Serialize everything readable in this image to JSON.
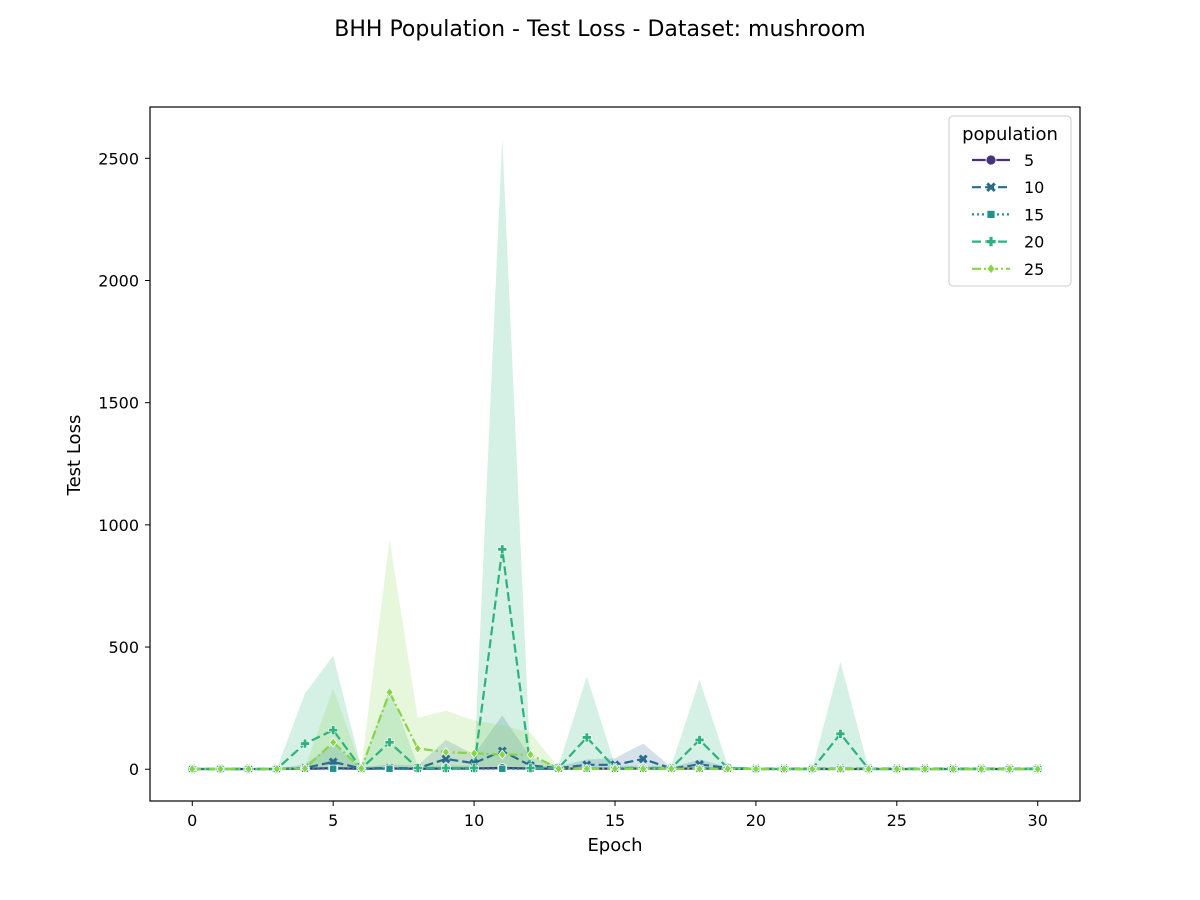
{
  "chart_data": {
    "type": "line",
    "title": "BHH Population - Test Loss - Dataset: mushroom",
    "xlabel": "Epoch",
    "ylabel": "Test Loss",
    "xlim": [
      -1.5,
      31.5
    ],
    "ylim": [
      -130,
      2710
    ],
    "xticks": [
      0,
      5,
      10,
      15,
      20,
      25,
      30
    ],
    "yticks": [
      0,
      500,
      1000,
      1500,
      2000,
      2500
    ],
    "grid": false,
    "legend": {
      "title": "population",
      "placement": "top-right"
    },
    "x": [
      0,
      1,
      2,
      3,
      4,
      5,
      6,
      7,
      8,
      9,
      10,
      11,
      12,
      13,
      14,
      15,
      16,
      17,
      18,
      19,
      20,
      21,
      22,
      23,
      24,
      25,
      26,
      27,
      28,
      29,
      30
    ],
    "series": [
      {
        "name": "5",
        "color": "#46327e",
        "marker": "circle",
        "dash": "solid",
        "values": [
          1,
          1,
          1,
          1,
          2,
          4,
          2,
          3,
          2,
          3,
          3,
          5,
          3,
          2,
          3,
          2,
          3,
          2,
          3,
          2,
          1,
          1,
          1,
          1,
          1,
          1,
          1,
          1,
          1,
          1,
          1
        ],
        "band_low": [
          0,
          0,
          0,
          0,
          0,
          0,
          0,
          0,
          0,
          0,
          0,
          0,
          0,
          0,
          0,
          0,
          0,
          0,
          0,
          0,
          0,
          0,
          0,
          0,
          0,
          0,
          0,
          0,
          0,
          0,
          0
        ],
        "band_high": [
          2,
          2,
          2,
          2,
          6,
          10,
          4,
          6,
          4,
          6,
          6,
          10,
          6,
          4,
          6,
          4,
          6,
          4,
          6,
          4,
          2,
          2,
          2,
          2,
          2,
          2,
          2,
          2,
          2,
          2,
          2
        ]
      },
      {
        "name": "10",
        "color": "#2a6b8f",
        "marker": "x",
        "dash": "dashed",
        "values": [
          1,
          1,
          1,
          1,
          5,
          30,
          3,
          5,
          4,
          42,
          25,
          75,
          15,
          5,
          18,
          18,
          42,
          3,
          20,
          5,
          2,
          2,
          2,
          2,
          2,
          2,
          2,
          2,
          2,
          2,
          2
        ],
        "band_low": [
          0,
          0,
          0,
          0,
          0,
          0,
          0,
          0,
          0,
          0,
          0,
          0,
          0,
          0,
          0,
          0,
          0,
          0,
          0,
          0,
          0,
          0,
          0,
          0,
          0,
          0,
          0,
          0,
          0,
          0,
          0
        ],
        "band_high": [
          2,
          2,
          2,
          2,
          20,
          100,
          8,
          20,
          15,
          120,
          60,
          220,
          50,
          12,
          40,
          45,
          105,
          8,
          40,
          10,
          4,
          4,
          4,
          4,
          4,
          4,
          4,
          4,
          4,
          4,
          4
        ]
      },
      {
        "name": "15",
        "color": "#21918c",
        "marker": "square",
        "dash": "dotted",
        "values": [
          1,
          1,
          1,
          1,
          2,
          2,
          2,
          2,
          2,
          2,
          2,
          2,
          2,
          2,
          2,
          2,
          2,
          2,
          2,
          2,
          1,
          1,
          1,
          1,
          1,
          1,
          1,
          1,
          1,
          1,
          1
        ],
        "band_low": [
          0,
          0,
          0,
          0,
          0,
          0,
          0,
          0,
          0,
          0,
          0,
          0,
          0,
          0,
          0,
          0,
          0,
          0,
          0,
          0,
          0,
          0,
          0,
          0,
          0,
          0,
          0,
          0,
          0,
          0,
          0
        ],
        "band_high": [
          2,
          2,
          2,
          2,
          5,
          5,
          5,
          5,
          5,
          5,
          5,
          5,
          5,
          5,
          5,
          5,
          5,
          5,
          5,
          5,
          2,
          2,
          2,
          2,
          2,
          2,
          2,
          2,
          2,
          2,
          2
        ]
      },
      {
        "name": "20",
        "color": "#2db27d",
        "marker": "plus",
        "dash": "dashed",
        "values": [
          1,
          1,
          1,
          1,
          105,
          160,
          3,
          110,
          5,
          5,
          5,
          900,
          5,
          5,
          130,
          5,
          5,
          5,
          120,
          5,
          1,
          1,
          1,
          145,
          1,
          1,
          1,
          1,
          1,
          1,
          1
        ],
        "band_low": [
          0,
          0,
          0,
          0,
          0,
          0,
          0,
          0,
          0,
          0,
          0,
          0,
          0,
          0,
          0,
          0,
          0,
          0,
          0,
          0,
          0,
          0,
          0,
          0,
          0,
          0,
          0,
          0,
          0,
          0,
          0
        ],
        "band_high": [
          2,
          2,
          2,
          3,
          310,
          465,
          8,
          330,
          15,
          15,
          15,
          2580,
          15,
          15,
          380,
          15,
          15,
          15,
          365,
          15,
          2,
          2,
          2,
          440,
          2,
          2,
          2,
          2,
          2,
          2,
          2
        ]
      },
      {
        "name": "25",
        "color": "#86d549",
        "marker": "diamond",
        "dash": "dashdot",
        "values": [
          1,
          1,
          1,
          1,
          3,
          110,
          3,
          315,
          85,
          70,
          65,
          60,
          60,
          2,
          2,
          2,
          2,
          2,
          2,
          2,
          1,
          1,
          1,
          1,
          1,
          1,
          1,
          1,
          1,
          1,
          1
        ],
        "band_low": [
          0,
          0,
          0,
          0,
          0,
          0,
          0,
          0,
          0,
          0,
          0,
          0,
          0,
          0,
          0,
          0,
          0,
          0,
          0,
          0,
          0,
          0,
          0,
          0,
          0,
          0,
          0,
          0,
          0,
          0,
          0
        ],
        "band_high": [
          2,
          2,
          2,
          2,
          8,
          330,
          8,
          940,
          210,
          240,
          200,
          180,
          150,
          6,
          6,
          6,
          6,
          6,
          6,
          6,
          2,
          2,
          2,
          2,
          2,
          2,
          2,
          2,
          2,
          2,
          2
        ]
      }
    ]
  }
}
